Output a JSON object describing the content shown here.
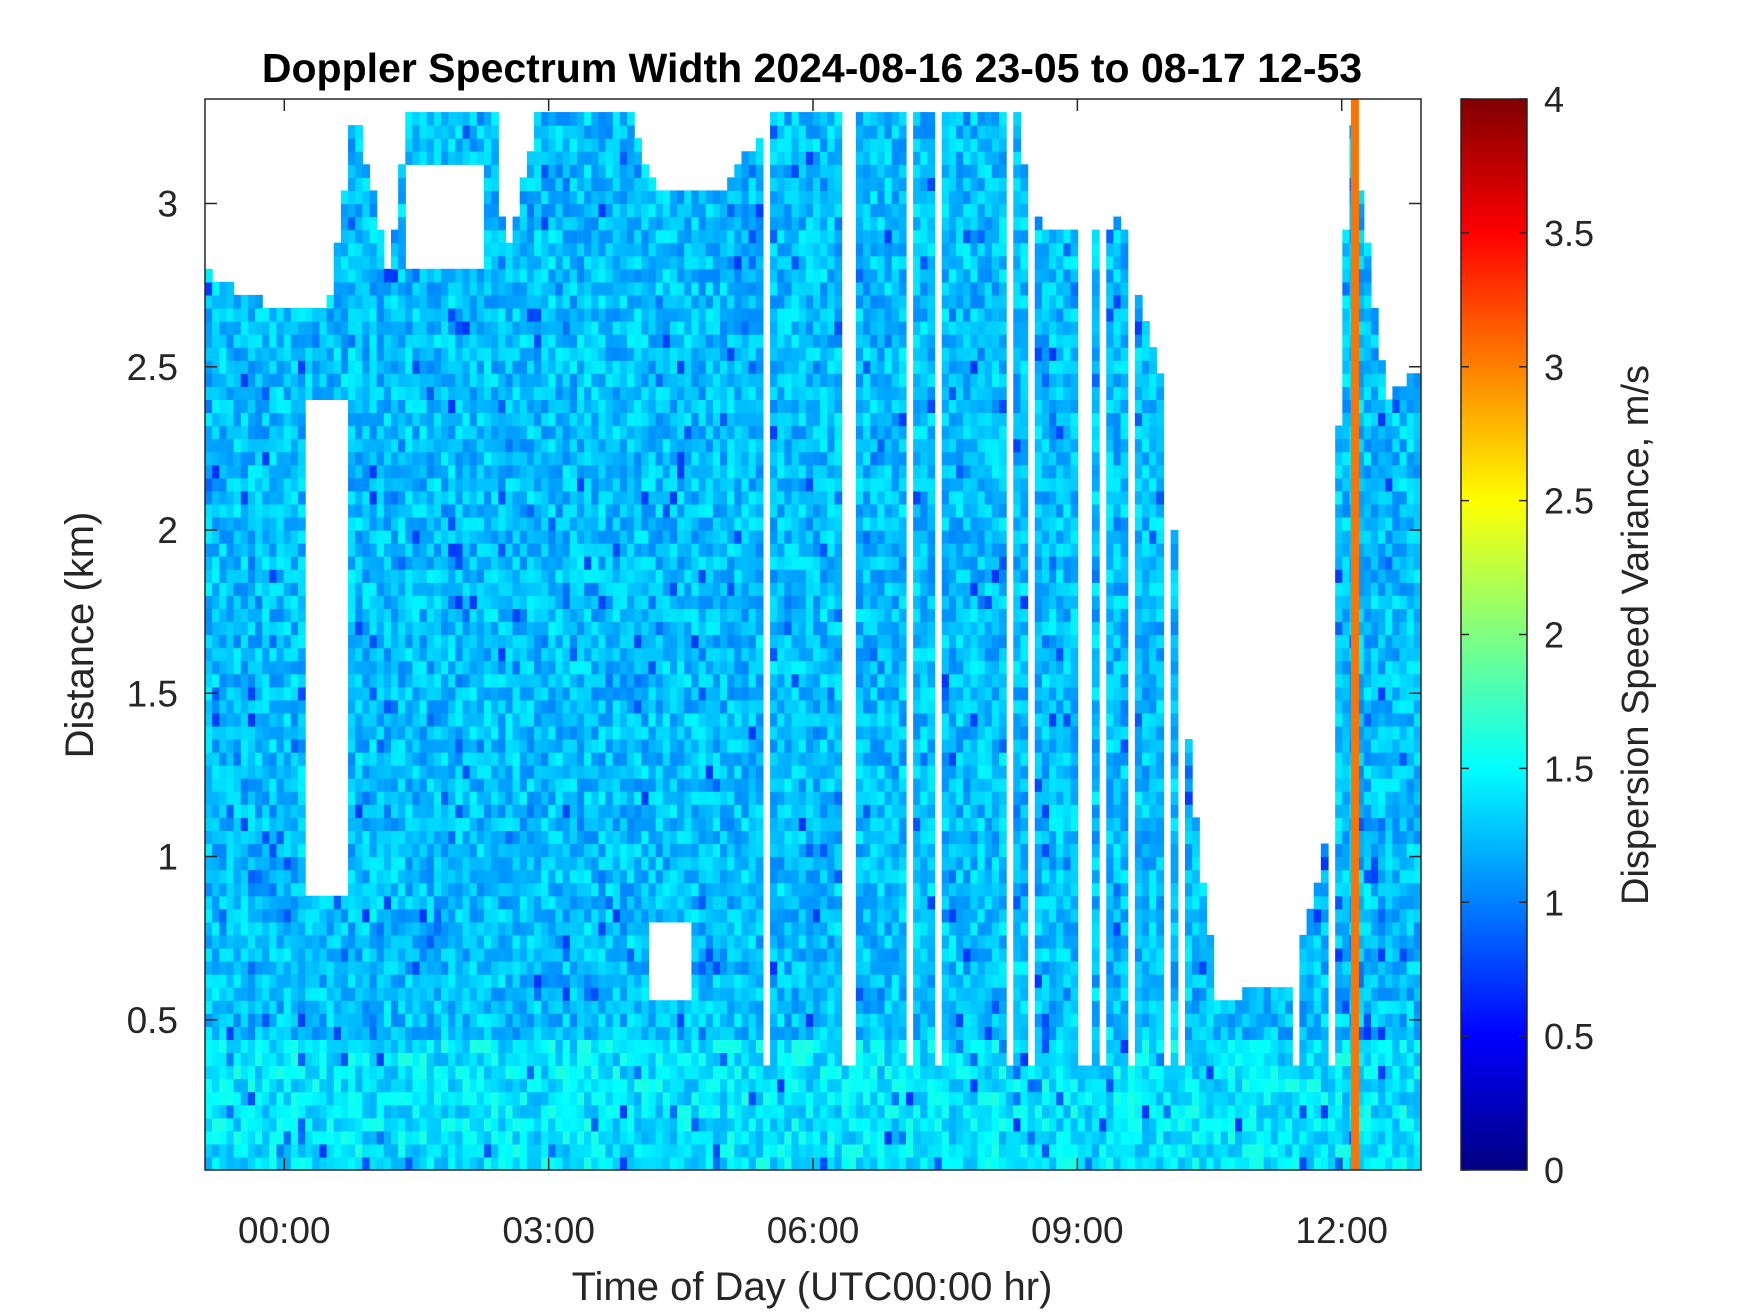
{
  "chart_data": {
    "type": "heatmap",
    "title": "Doppler Spectrum Width 2024-08-16 23-05 to 08-17 12-53",
    "xlabel": "Time of Day (UTC00:00 hr)",
    "ylabel": "Distance (km)",
    "colorbar_label": "Dispersion Speed Variance, m/s",
    "colormap": "jet",
    "x_range_hours": [
      -0.9,
      12.9
    ],
    "y_range_km": [
      0.04,
      3.32
    ],
    "clim": [
      0,
      4
    ],
    "x_ticks": [
      {
        "value": 0,
        "label": "00:00"
      },
      {
        "value": 3,
        "label": "03:00"
      },
      {
        "value": 6,
        "label": "06:00"
      },
      {
        "value": 9,
        "label": "09:00"
      },
      {
        "value": 12,
        "label": "12:00"
      }
    ],
    "y_ticks": [
      {
        "value": 0.5,
        "label": "0.5"
      },
      {
        "value": 1,
        "label": "1"
      },
      {
        "value": 1.5,
        "label": "1.5"
      },
      {
        "value": 2,
        "label": "2"
      },
      {
        "value": 2.5,
        "label": "2.5"
      },
      {
        "value": 3,
        "label": "3"
      }
    ],
    "colorbar_ticks": [
      {
        "value": 0,
        "label": "0"
      },
      {
        "value": 0.5,
        "label": "0.5"
      },
      {
        "value": 1,
        "label": "1"
      },
      {
        "value": 1.5,
        "label": "1.5"
      },
      {
        "value": 2,
        "label": "2"
      },
      {
        "value": 2.5,
        "label": "2.5"
      },
      {
        "value": 3,
        "label": "3"
      },
      {
        "value": 3.5,
        "label": "3.5"
      },
      {
        "value": 4,
        "label": "4"
      }
    ],
    "typical_value_ms": 1.25,
    "near_surface_value_ms": 1.4,
    "data_top_km": [
      {
        "time": -0.9,
        "top": 2.8
      },
      {
        "time": -0.5,
        "top": 2.72
      },
      {
        "time": 0.0,
        "top": 2.68
      },
      {
        "time": 0.5,
        "top": 2.66
      },
      {
        "time": 0.8,
        "top": 3.3
      },
      {
        "time": 1.2,
        "top": 2.78
      },
      {
        "time": 1.4,
        "top": 3.3
      },
      {
        "time": 2.4,
        "top": 3.3
      },
      {
        "time": 2.5,
        "top": 2.8
      },
      {
        "time": 2.9,
        "top": 3.3
      },
      {
        "time": 3.9,
        "top": 3.3
      },
      {
        "time": 4.2,
        "top": 3.05
      },
      {
        "time": 5.0,
        "top": 3.05
      },
      {
        "time": 5.6,
        "top": 3.3
      },
      {
        "time": 8.3,
        "top": 3.3
      },
      {
        "time": 8.5,
        "top": 2.95
      },
      {
        "time": 9.0,
        "top": 2.9
      },
      {
        "time": 9.5,
        "top": 2.95
      },
      {
        "time": 10.0,
        "top": 2.4
      },
      {
        "time": 10.3,
        "top": 1.2
      },
      {
        "time": 10.6,
        "top": 0.55
      },
      {
        "time": 11.0,
        "top": 0.6
      },
      {
        "time": 11.4,
        "top": 0.6
      },
      {
        "time": 11.8,
        "top": 1.0
      },
      {
        "time": 12.0,
        "top": 2.6
      },
      {
        "time": 12.1,
        "top": 3.3
      },
      {
        "time": 12.5,
        "top": 2.4
      },
      {
        "time": 12.9,
        "top": 2.5
      }
    ],
    "clear_regions": [
      {
        "t0": 4.1,
        "t1": 4.6,
        "z0": 0.55,
        "z1": 0.8
      },
      {
        "t0": 0.2,
        "t1": 0.7,
        "z0": 0.9,
        "z1": 2.4
      },
      {
        "t0": 1.4,
        "t1": 2.3,
        "z0": 2.8,
        "z1": 3.1
      }
    ],
    "gap_columns_hours": [
      5.45,
      6.35,
      6.45,
      7.1,
      7.45,
      8.2,
      8.5,
      9.05,
      9.1,
      9.3,
      9.6,
      10.05,
      10.2,
      11.5,
      11.9
    ],
    "vertical_streak": {
      "time": 12.15,
      "value_ms": 3.05
    }
  }
}
